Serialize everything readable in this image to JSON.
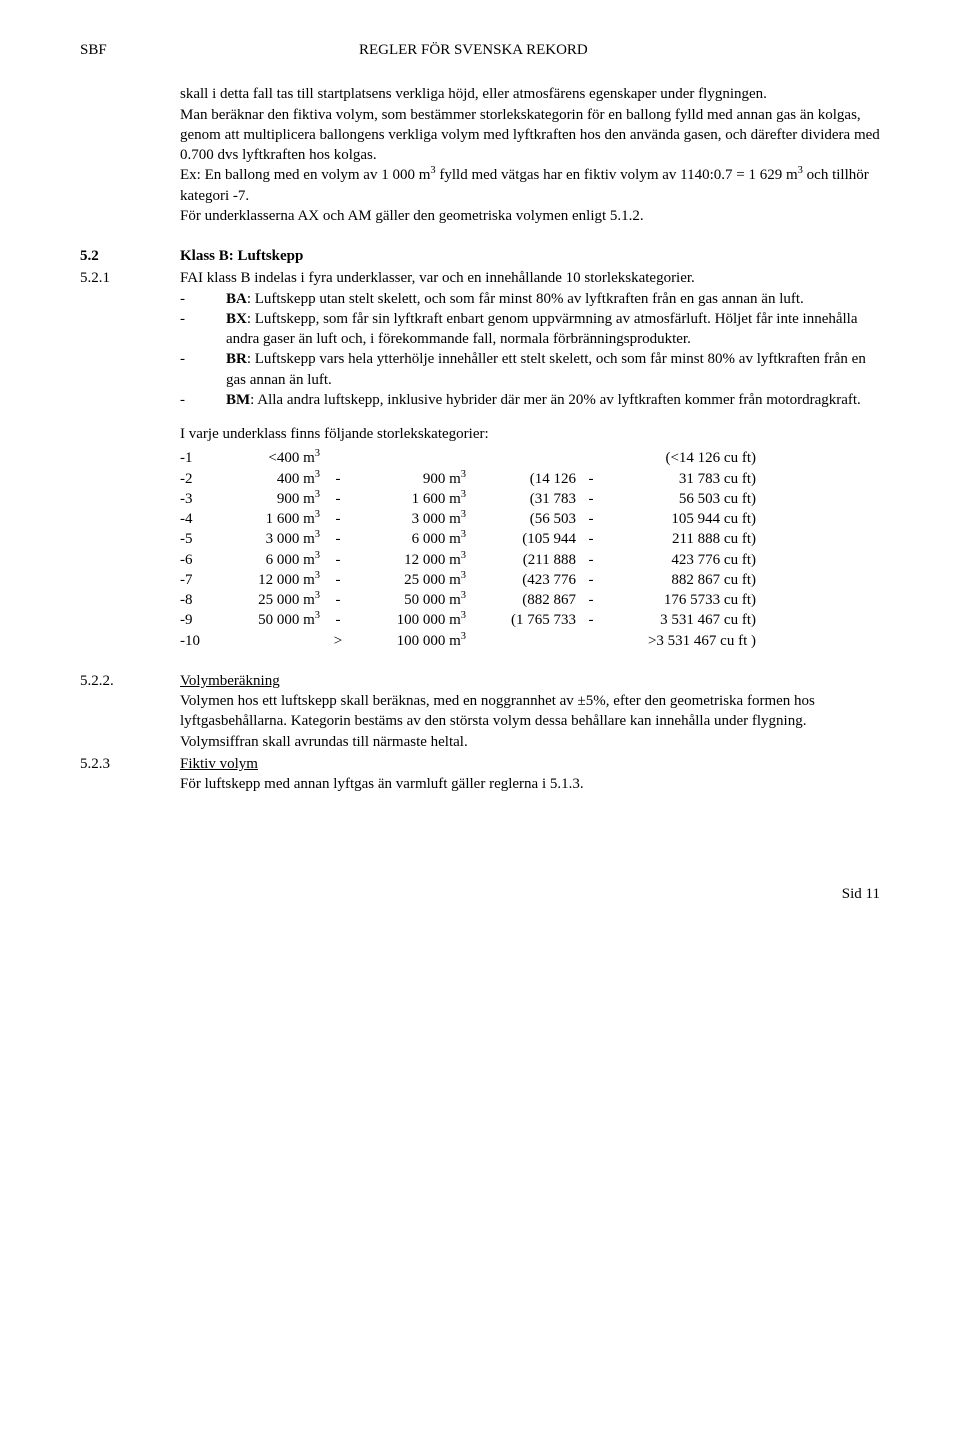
{
  "header": {
    "left": "SBF",
    "center": "REGLER FÖR SVENSKA REKORD"
  },
  "intro_p1": "skall i detta fall tas till startplatsens verkliga höjd, eller atmosfärens egenskaper under flygningen.",
  "intro_p2a": "Man beräknar den fiktiva volym, som bestämmer storlekskategorin för en ballong fylld med annan gas än kolgas, genom att multiplicera ballongens verkliga volym med lyftkraften hos den använda gasen, och därefter dividera med 0.700 dvs lyftkraften hos kolgas.",
  "intro_p2b_1": "Ex: En ballong med en volym av 1 000 m",
  "intro_p2b_2": " fylld med vätgas har en fiktiv volym av 1140:0.7 = 1 629 m",
  "intro_p2b_3": " och tillhör kategori -7.",
  "intro_p2b_sup": "3",
  "intro_p3": "För underklasserna AX och AM gäller den geometriska volymen enligt 5.1.2.",
  "s52_num": "5.2",
  "s52_title": "Klass B: Luftskepp",
  "s521_num": "5.2.1",
  "s521_text": "FAI klass B indelas i fyra underklasser, var och en innehållande 10 storlekskategorier.",
  "ba_label": "BA",
  "ba_text": ": Luftskepp utan stelt skelett, och som får minst 80% av lyftkraften från en gas annan än luft.",
  "bx_label": "BX",
  "bx_text": ": Luftskepp, som får sin lyftkraft enbart genom uppvärmning av atmosfärluft. Höljet får inte innehålla andra gaser än luft och, i förekommande fall, normala förbränningsprodukter.",
  "br_label": "BR",
  "br_text": ": Luftskepp vars hela ytterhölje innehåller ett stelt skelett, och som får minst 80% av lyftkraften från en gas annan än luft.",
  "bm_label": "BM",
  "bm_text": ": Alla andra luftskepp, inklusive hybrider där mer än 20% av lyftkraften kommer från motordragkraft.",
  "dash": "-",
  "table_intro": "I varje underklass finns följande storlekskategorier:",
  "sup3": "3",
  "rows": [
    {
      "idx": "-1",
      "from": "<400 m",
      "dash": "",
      "to": "",
      "p1": "",
      "pd": "",
      "p2": "(<14 126 cu ft)"
    },
    {
      "idx": "-2",
      "from": "400 m",
      "dash": "-",
      "to": "900 m",
      "p1": "(14 126",
      "pd": "-",
      "p2": "31 783 cu ft)"
    },
    {
      "idx": "-3",
      "from": "900 m",
      "dash": "-",
      "to": "1 600 m",
      "p1": "(31 783",
      "pd": "-",
      "p2": "56 503 cu ft)"
    },
    {
      "idx": "-4",
      "from": "1 600 m",
      "dash": "-",
      "to": "3 000 m",
      "p1": "(56 503",
      "pd": "-",
      "p2": "105 944 cu ft)"
    },
    {
      "idx": "-5",
      "from": "3 000 m",
      "dash": "-",
      "to": "6 000 m",
      "p1": "(105 944",
      "pd": "-",
      "p2": "211 888 cu ft)"
    },
    {
      "idx": "-6",
      "from": "6 000 m",
      "dash": "-",
      "to": "12 000 m",
      "p1": "(211 888",
      "pd": "-",
      "p2": "423 776 cu ft)"
    },
    {
      "idx": "-7",
      "from": "12 000 m",
      "dash": "-",
      "to": "25 000 m",
      "p1": "(423 776",
      "pd": "-",
      "p2": "882 867 cu ft)"
    },
    {
      "idx": "-8",
      "from": "25 000 m",
      "dash": "-",
      "to": "50 000 m",
      "p1": "(882 867",
      "pd": "-",
      "p2": "176 5733 cu ft)"
    },
    {
      "idx": "-9",
      "from": "50 000 m",
      "dash": "-",
      "to": "100 000 m",
      "p1": "(1 765 733",
      "pd": "-",
      "p2": "3 531 467 cu ft)"
    },
    {
      "idx": "-10",
      "from": "",
      "dash": ">",
      "to": "100 000 m",
      "p1": "",
      "pd": "",
      "p2": ">3 531 467 cu ft )"
    }
  ],
  "s522_num": "5.2.2.",
  "s522_title": "Volymberäkning",
  "s522_text": "Volymen hos ett luftskepp skall beräknas, med en noggrannhet av ±5%, efter den geometriska formen hos lyftgasbehållarna. Kategorin bestäms av den största volym dessa behållare kan innehålla under flygning. Volymsiffran skall avrundas till närmaste heltal.",
  "s523_num": "5.2.3",
  "s523_title": "Fiktiv volym",
  "s523_text": "För luftskepp med annan lyftgas än varmluft gäller reglerna i 5.1.3.",
  "footer": "Sid 11"
}
